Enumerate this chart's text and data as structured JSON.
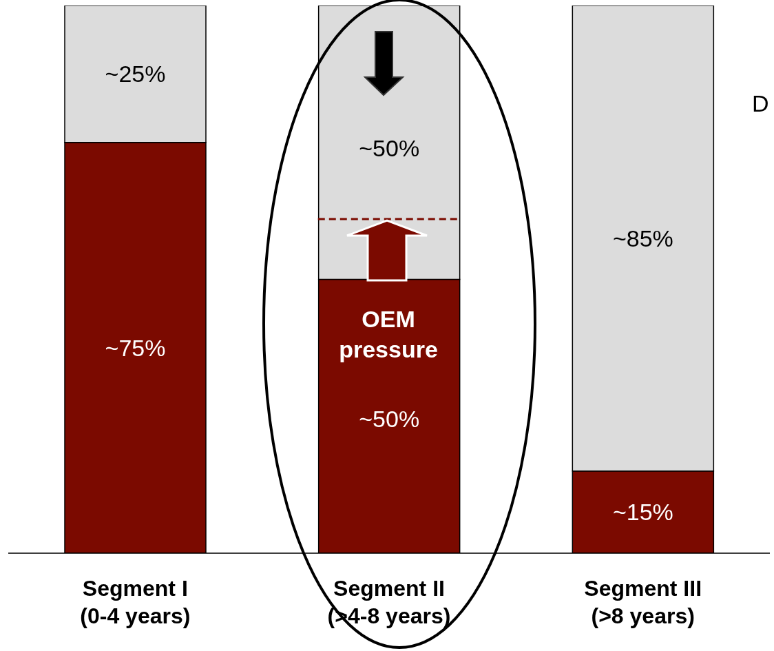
{
  "chart_data": {
    "type": "bar",
    "stacked": true,
    "categories": [
      "Segment I\n(0-4 years)",
      "Segment II\n(>4-8 years)",
      "Segment III\n(>8 years)"
    ],
    "series": [
      {
        "color": "#7b0a00",
        "values": [
          75,
          50,
          15
        ],
        "value_labels": [
          "~75%",
          "~50%",
          "~15%"
        ]
      },
      {
        "color": "#dcdcdc",
        "values": [
          25,
          50,
          85
        ],
        "value_labels": [
          "~25%",
          "~50%",
          "~85%"
        ]
      }
    ],
    "ylim": [
      0,
      100
    ],
    "tick_labels": "x",
    "grid": false,
    "legend": false,
    "ref_lines": [
      {
        "axis": "y",
        "value": 61,
        "color": "#7b0a00",
        "line_style": "dashed"
      }
    ],
    "annotations": [
      "OEM pressure",
      "D"
    ]
  }
}
